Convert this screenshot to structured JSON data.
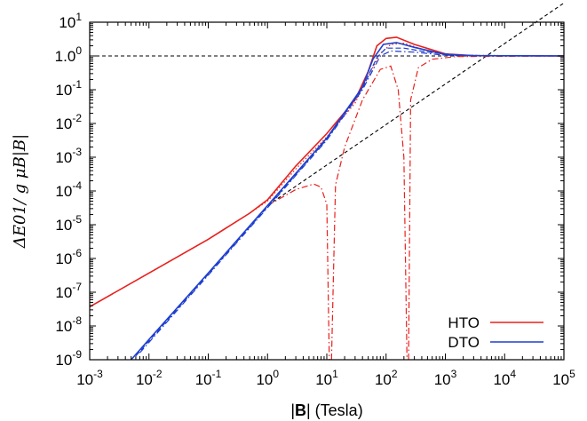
{
  "chart_data": {
    "type": "line",
    "title": "",
    "xlabel": {
      "prefix": "|",
      "bold": "B",
      "suffix": "| (Tesla)"
    },
    "ylabel": {
      "text": "ΔE01/ g μB|B|"
    },
    "xscale": "log",
    "yscale": "log",
    "xlim": [
      0.001,
      100000
    ],
    "ylim": [
      1e-09,
      10
    ],
    "xticks": [
      {
        "base": "10",
        "exp": "-3",
        "value": 0.001
      },
      {
        "base": "10",
        "exp": "-2",
        "value": 0.01
      },
      {
        "base": "10",
        "exp": "-1",
        "value": 0.1
      },
      {
        "base": "10",
        "exp": "0",
        "value": 1
      },
      {
        "base": "10",
        "exp": "1",
        "value": 10
      },
      {
        "base": "10",
        "exp": "2",
        "value": 100
      },
      {
        "base": "10",
        "exp": "3",
        "value": 1000
      },
      {
        "base": "10",
        "exp": "4",
        "value": 10000
      },
      {
        "base": "10",
        "exp": "5",
        "value": 100000
      }
    ],
    "yticks": [
      {
        "base": "10",
        "exp": "-9",
        "value": 1e-09
      },
      {
        "base": "10",
        "exp": "-8",
        "value": 1e-08
      },
      {
        "base": "10",
        "exp": "-7",
        "value": 1e-07
      },
      {
        "base": "10",
        "exp": "-6",
        "value": 1e-06
      },
      {
        "base": "10",
        "exp": "-5",
        "value": 1e-05
      },
      {
        "base": "10",
        "exp": "-4",
        "value": 0.0001
      },
      {
        "base": "10",
        "exp": "-3",
        "value": 0.001
      },
      {
        "base": "10",
        "exp": "-2",
        "value": 0.01
      },
      {
        "base": "10",
        "exp": "-1",
        "value": 0.1
      },
      {
        "base": "1.0",
        "exp": "0",
        "value": 1
      },
      {
        "base": "10",
        "exp": "1",
        "value": 10
      }
    ],
    "legend": {
      "placement": "bottom-right",
      "entries": [
        {
          "label": "HTO",
          "color": "#e8201c"
        },
        {
          "label": "DTO",
          "color": "#1f3fcf"
        }
      ]
    },
    "reference_lines": [
      {
        "kind": "horizontal",
        "y": 1,
        "style": "dashed",
        "color": "#000000"
      },
      {
        "kind": "line",
        "points": [
          [
            1,
            3.7e-05
          ],
          [
            100000,
            37
          ]
        ],
        "style": "dashed",
        "color": "#000000"
      }
    ],
    "series": [
      {
        "group": "HTO",
        "color": "#e8201c",
        "style": "solid",
        "points": [
          [
            0.001,
            3.7e-08
          ],
          [
            0.01,
            3.7e-07
          ],
          [
            0.1,
            3.7e-06
          ],
          [
            0.5,
            2.2e-05
          ],
          [
            1,
            5.5e-05
          ],
          [
            3,
            0.00055
          ],
          [
            10,
            0.005
          ],
          [
            30,
            0.05
          ],
          [
            50,
            0.35
          ],
          [
            70,
            2.0
          ],
          [
            100,
            3.3
          ],
          [
            150,
            3.6
          ],
          [
            300,
            2.2
          ],
          [
            1000,
            1.15
          ],
          [
            3000,
            1.02
          ],
          [
            100000,
            1.0
          ]
        ]
      },
      {
        "group": "HTO",
        "color": "#e8201c",
        "style": "dotted",
        "points": [
          [
            0.5,
            2.2e-05
          ],
          [
            1,
            5e-05
          ],
          [
            3,
            0.00045
          ],
          [
            10,
            0.004
          ],
          [
            30,
            0.04
          ],
          [
            50,
            0.25
          ],
          [
            80,
            1.2
          ],
          [
            120,
            2.2
          ],
          [
            200,
            2.4
          ],
          [
            500,
            1.4
          ],
          [
            1500,
            1.05
          ],
          [
            100000,
            1.0
          ]
        ]
      },
      {
        "group": "HTO",
        "color": "#e8201c",
        "style": "dashdot",
        "points": [
          [
            1,
            3.7e-05
          ],
          [
            3,
            0.00011
          ],
          [
            6,
            0.00016
          ],
          [
            8,
            0.00013
          ],
          [
            10,
            4e-05
          ],
          [
            11,
            1e-09
          ]
        ]
      },
      {
        "group": "HTO",
        "color": "#e8201c",
        "style": "dashdot",
        "points": [
          [
            12,
            1e-09
          ],
          [
            14,
            0.00015
          ],
          [
            20,
            0.002
          ],
          [
            40,
            0.05
          ],
          [
            80,
            0.4
          ],
          [
            120,
            0.5
          ],
          [
            160,
            0.1
          ],
          [
            200,
            0.001
          ],
          [
            225,
            1e-09
          ]
        ]
      },
      {
        "group": "HTO",
        "color": "#e8201c",
        "style": "dashdot",
        "points": [
          [
            240,
            1e-09
          ],
          [
            260,
            0.05
          ],
          [
            350,
            0.45
          ],
          [
            600,
            0.8
          ],
          [
            1500,
            0.96
          ],
          [
            100000,
            1.0
          ]
        ]
      },
      {
        "group": "DTO",
        "color": "#1f3fcf",
        "style": "solid",
        "points": [
          [
            0.005,
            1e-09
          ],
          [
            0.01,
            4e-09
          ],
          [
            0.1,
            3.7e-07
          ],
          [
            1,
            3.7e-05
          ],
          [
            10,
            0.0037
          ],
          [
            40,
            0.12
          ],
          [
            60,
            0.8
          ],
          [
            90,
            2.2
          ],
          [
            150,
            2.5
          ],
          [
            300,
            1.8
          ],
          [
            1000,
            1.1
          ],
          [
            3000,
            1.02
          ],
          [
            100000,
            1.0
          ]
        ]
      },
      {
        "group": "DTO",
        "color": "#1f3fcf",
        "style": "dashed",
        "points": [
          [
            0.006,
            1.3e-09
          ],
          [
            0.1,
            3.4e-07
          ],
          [
            1,
            3.4e-05
          ],
          [
            10,
            0.0034
          ],
          [
            40,
            0.11
          ],
          [
            70,
            0.9
          ],
          [
            100,
            1.7
          ],
          [
            200,
            1.7
          ],
          [
            500,
            1.3
          ],
          [
            2000,
            1.04
          ],
          [
            100000,
            1.0
          ]
        ]
      },
      {
        "group": "DTO",
        "color": "#1f3fcf",
        "style": "dashdot",
        "points": [
          [
            0.007,
            1.6e-09
          ],
          [
            0.1,
            3.2e-07
          ],
          [
            1,
            3.2e-05
          ],
          [
            10,
            0.0032
          ],
          [
            40,
            0.1
          ],
          [
            80,
            1.0
          ],
          [
            120,
            1.4
          ],
          [
            300,
            1.3
          ],
          [
            1000,
            1.05
          ],
          [
            100000,
            1.0
          ]
        ]
      }
    ]
  }
}
